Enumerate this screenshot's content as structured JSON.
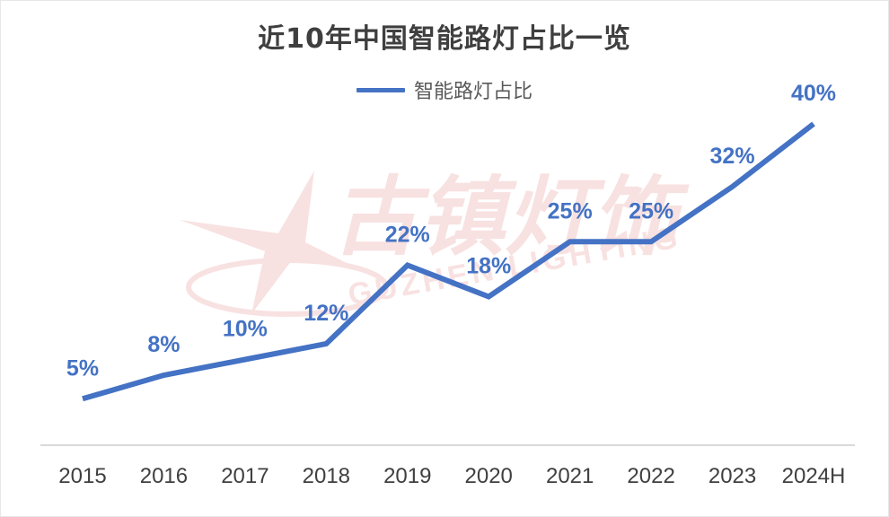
{
  "chart_data": {
    "type": "line",
    "title": "近10年中国智能路灯占比一览",
    "categories": [
      "2015",
      "2016",
      "2017",
      "2018",
      "2019",
      "2020",
      "2021",
      "2022",
      "2023",
      "2024H"
    ],
    "series": [
      {
        "name": "智能路灯占比",
        "values": [
          5,
          8,
          10,
          12,
          22,
          18,
          25,
          25,
          32,
          40
        ],
        "labels": [
          "5%",
          "8%",
          "10%",
          "12%",
          "22%",
          "18%",
          "25%",
          "25%",
          "32%",
          "40%"
        ],
        "color": "#4472c4"
      }
    ],
    "xlabel": "",
    "ylabel": "",
    "ylim": [
      0,
      40
    ],
    "grid": false,
    "legend_position": "top"
  },
  "watermark": {
    "text": "古镇灯饰",
    "subtext": "GUZHEN LIGHTING",
    "color": "#f2c5c5"
  }
}
